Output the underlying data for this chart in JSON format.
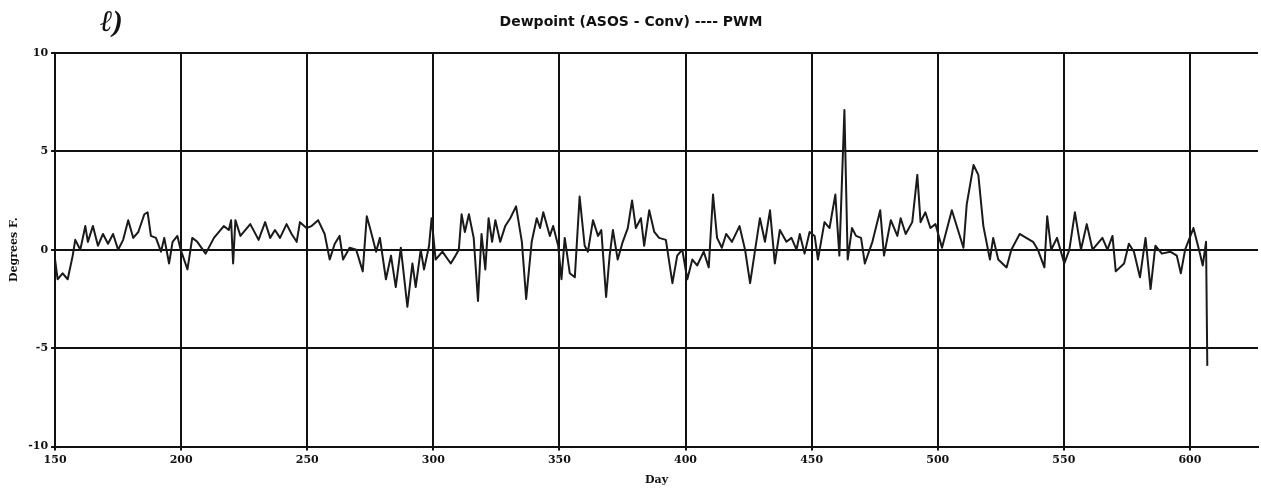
{
  "chart_data": {
    "type": "line",
    "title": "Dewpoint (ASOS - Conv) ---- PWM",
    "xlabel": "Day",
    "ylabel": "Degrees F.",
    "annotations": [
      "ℓ)"
    ],
    "x": [
      150,
      151,
      153,
      155,
      157,
      158,
      160,
      162,
      163,
      165,
      167,
      169,
      171,
      173,
      175,
      177,
      179,
      181,
      183,
      185.4,
      186.7,
      188,
      190,
      192,
      193.3,
      195.2,
      196.6,
      198.5,
      199.8,
      202.5,
      204.4,
      206.4,
      209.7,
      213,
      216.9,
      218.9,
      219.8,
      220.6,
      221.5,
      223.5,
      227.4,
      230.7,
      233.3,
      235.3,
      237.2,
      239.2,
      241.8,
      243.8,
      245.8,
      247.1,
      249.7,
      251.7,
      254.3,
      256.9,
      258.9,
      260.9,
      262.8,
      264.2,
      266.8,
      269.4,
      272,
      273.6,
      275.3,
      277.3,
      278.8,
      281.2,
      283.2,
      285.1,
      287.1,
      289.7,
      291.7,
      293,
      295,
      296.3,
      298.3,
      299.3,
      300.9,
      303.6,
      306.9,
      308.8,
      310.1,
      311.2,
      312.5,
      314.1,
      316,
      317.7,
      319.1,
      320.6,
      321.9,
      323.3,
      324.6,
      326.5,
      328.5,
      330.5,
      332.8,
      335.1,
      336.8,
      339,
      341,
      342.3,
      343.6,
      346.2,
      347.5,
      349.5,
      350.8,
      352.1,
      354.1,
      356.1,
      358,
      360,
      361.3,
      363.3,
      365.3,
      366.6,
      368.5,
      369.9,
      371.2,
      373.1,
      375.1,
      377.1,
      378.8,
      380.3,
      382.3,
      383.6,
      385.6,
      387.6,
      389.5,
      392.2,
      394.8,
      396.7,
      398.7,
      400.7,
      402.7,
      404.6,
      407.2,
      409.2,
      410.9,
      412.5,
      414.4,
      416.1,
      418.4,
      421.4,
      423.6,
      425.6,
      427.6,
      429.5,
      431.5,
      433.5,
      435.4,
      437.4,
      440,
      442,
      444,
      445.3,
      447.2,
      449.2,
      451.2,
      452.5,
      455.1,
      457.1,
      459.4,
      461,
      463,
      464.3,
      466,
      467.6,
      469.6,
      471.1,
      474.1,
      477.2,
      478.7,
      481.4,
      484,
      485.3,
      487.3,
      489.9,
      491.9,
      493.2,
      495.1,
      497.1,
      499.1,
      501.7,
      505.6,
      510.2,
      511.5,
      514.2,
      516.1,
      518.1,
      520.7,
      522,
      524,
      527.3,
      529.2,
      532.5,
      535.1,
      537.8,
      539.7,
      542.3,
      543.4,
      545,
      547.3,
      550.2,
      552.2,
      554.4,
      556.8,
      559.1,
      561.4,
      565.3,
      567.3,
      569.3,
      570.6,
      573.9,
      575.8,
      577.8,
      580.2,
      582.4,
      584.4,
      586.3,
      588.9,
      592.2,
      594.8,
      596.4,
      598.1,
      601.4,
      603.8,
      605.1,
      606.4,
      606.9
    ],
    "series": [
      {
        "color": "#1a1a1a",
        "values": [
          -0.5,
          -1.5,
          -1.2,
          -1.5,
          -0.3,
          0.5,
          0,
          1.2,
          0.4,
          1.2,
          0.2,
          0.8,
          0.3,
          0.8,
          0,
          0.5,
          1.5,
          0.6,
          0.9,
          1.8,
          1.9,
          0.7,
          0.6,
          -0.1,
          0.6,
          -0.7,
          0.4,
          0.7,
          0,
          -1,
          0.6,
          0.4,
          -0.2,
          0.6,
          1.2,
          1,
          1.5,
          -0.7,
          1.5,
          0.7,
          1.3,
          0.5,
          1.4,
          0.6,
          1,
          0.6,
          1.3,
          0.8,
          0.4,
          1.4,
          1.1,
          1.2,
          1.5,
          0.8,
          -0.5,
          0.3,
          0.7,
          -0.5,
          0.1,
          0,
          -1.1,
          1.7,
          0.9,
          -0.1,
          0.6,
          -1.5,
          -0.3,
          -1.9,
          0.1,
          -2.9,
          -0.7,
          -1.9,
          0,
          -1,
          0.2,
          1.6,
          -0.5,
          -0.1,
          -0.7,
          -0.3,
          0,
          1.8,
          0.9,
          1.8,
          0.6,
          -2.6,
          0.8,
          -1,
          1.6,
          0.4,
          1.5,
          0.4,
          1.2,
          1.6,
          2.2,
          0.4,
          -2.5,
          0.4,
          1.6,
          1.1,
          1.9,
          0.7,
          1.2,
          0.2,
          -1.5,
          0.6,
          -1.2,
          -1.4,
          2.7,
          0.2,
          -0.1,
          1.5,
          0.7,
          1,
          -2.4,
          -0.3,
          1,
          -0.5,
          0.4,
          1.1,
          2.5,
          1.1,
          1.6,
          0.2,
          2,
          0.9,
          0.6,
          0.5,
          -1.7,
          -0.3,
          0,
          -1.5,
          -0.5,
          -0.8,
          -0.1,
          -0.9,
          2.8,
          0.6,
          0.1,
          0.8,
          0.4,
          1.2,
          0,
          -1.7,
          0,
          1.6,
          0.4,
          2,
          -0.7,
          1,
          0.4,
          0.6,
          0,
          0.8,
          -0.2,
          0.9,
          0.7,
          -0.5,
          1.4,
          1.1,
          2.8,
          -0.3,
          7.1,
          -0.5,
          1.1,
          0.7,
          0.6,
          -0.7,
          0.4,
          2,
          -0.3,
          1.5,
          0.7,
          1.6,
          0.8,
          1.4,
          3.8,
          1.4,
          1.9,
          1.1,
          1.3,
          0.1,
          2,
          0.1,
          2.3,
          4.3,
          3.8,
          1.2,
          -0.5,
          0.6,
          -0.5,
          -0.9,
          0,
          0.8,
          0.6,
          0.4,
          0,
          -0.9,
          1.7,
          0,
          0.6,
          -0.7,
          0,
          1.9,
          0,
          1.3,
          0,
          0.6,
          0,
          0.7,
          -1.1,
          -0.7,
          0.3,
          -0.1,
          -1.4,
          0.6,
          -2,
          0.2,
          -0.2,
          -0.1,
          -0.3,
          -1.2,
          0,
          1.1,
          -0.1,
          -0.8,
          0.4,
          -5.9
        ]
      }
    ],
    "xlim": [
      150,
      627
    ],
    "ylim": [
      -10,
      10
    ],
    "xticks": [
      150,
      200,
      250,
      300,
      350,
      400,
      450,
      500,
      550,
      600
    ],
    "yticks": [
      -10,
      -5,
      0,
      5,
      10
    ],
    "grid": true,
    "marker": "none",
    "line_style": "solid"
  }
}
